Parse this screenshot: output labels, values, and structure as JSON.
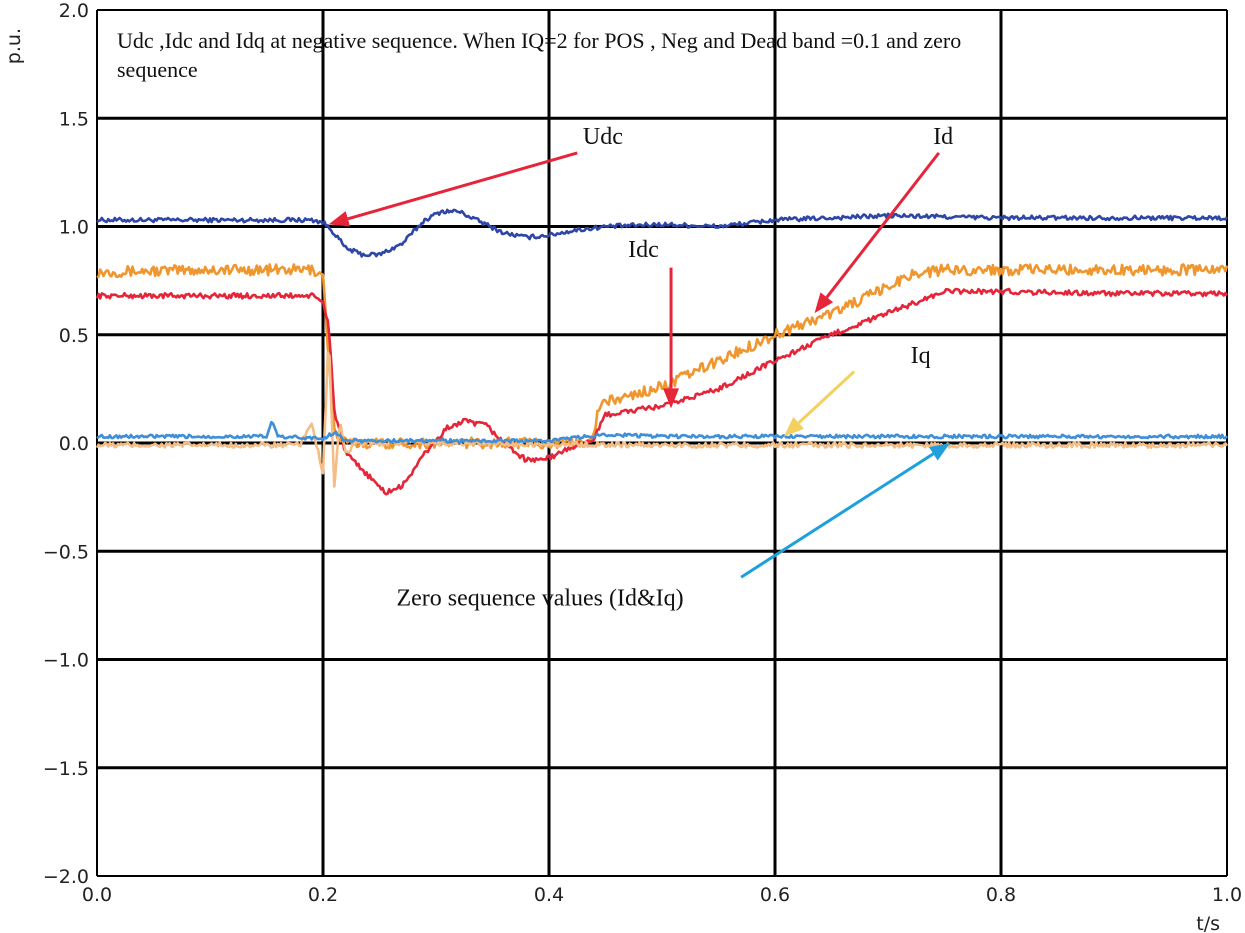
{
  "chart_data": {
    "type": "line",
    "title_lines": [
      "Udc ,Idc and Idq at negative sequence. When IQ=2 for  POS , Neg and Dead band =0.1 and zero",
      "sequence"
    ],
    "xlabel": "t/s",
    "ylabel": "p.u.",
    "xlim": [
      0,
      1
    ],
    "ylim": [
      -2,
      2
    ],
    "grid": true,
    "x_ticks": [
      0.0,
      0.2,
      0.4,
      0.6,
      0.8,
      1.0
    ],
    "x_tick_labels": [
      "0.0",
      "0.2",
      "0.4",
      "0.6",
      "0.8",
      "1.0"
    ],
    "y_ticks": [
      -2.0,
      -1.5,
      -1.0,
      -0.5,
      0.0,
      0.5,
      1.0,
      1.5,
      2.0
    ],
    "y_tick_labels": [
      "−2.0",
      "−1.5",
      "−1.0",
      "−0.5",
      "0.0",
      "0.5",
      "1.0",
      "1.5",
      "2.0"
    ],
    "series": [
      {
        "name": "Udc",
        "color": "#2e46a8",
        "x": [
          0.0,
          0.1,
          0.19,
          0.2,
          0.21,
          0.22,
          0.235,
          0.25,
          0.27,
          0.29,
          0.305,
          0.32,
          0.34,
          0.36,
          0.38,
          0.4,
          0.42,
          0.45,
          0.5,
          0.55,
          0.6,
          0.7,
          0.8,
          0.9,
          1.0
        ],
        "y": [
          1.03,
          1.03,
          1.03,
          1.02,
          0.97,
          0.9,
          0.87,
          0.87,
          0.92,
          1.03,
          1.07,
          1.07,
          1.02,
          0.97,
          0.95,
          0.96,
          0.98,
          1.0,
          1.01,
          1.0,
          1.03,
          1.05,
          1.04,
          1.04,
          1.04
        ],
        "noise": 0.01
      },
      {
        "name": "Idc",
        "color": "#f0962e",
        "x": [
          0.0,
          0.1,
          0.19,
          0.2,
          0.205,
          0.21,
          0.22,
          0.25,
          0.3,
          0.35,
          0.4,
          0.43,
          0.44,
          0.445,
          0.5,
          0.55,
          0.6,
          0.65,
          0.7,
          0.72,
          0.75,
          0.8,
          0.9,
          1.0
        ],
        "y": [
          0.79,
          0.8,
          0.8,
          0.78,
          0.4,
          0.05,
          0.0,
          0.0,
          0.0,
          0.0,
          0.0,
          0.0,
          0.05,
          0.18,
          0.26,
          0.38,
          0.5,
          0.6,
          0.72,
          0.78,
          0.8,
          0.8,
          0.8,
          0.8
        ],
        "noise": 0.025
      },
      {
        "name": "Id",
        "color": "#e5253a",
        "x": [
          0.0,
          0.19,
          0.2,
          0.205,
          0.21,
          0.22,
          0.24,
          0.255,
          0.27,
          0.29,
          0.31,
          0.325,
          0.345,
          0.36,
          0.38,
          0.4,
          0.42,
          0.44,
          0.45,
          0.5,
          0.55,
          0.6,
          0.65,
          0.7,
          0.75,
          0.8,
          0.9,
          1.0
        ],
        "y": [
          0.68,
          0.68,
          0.65,
          0.55,
          0.15,
          -0.05,
          -0.15,
          -0.23,
          -0.2,
          -0.05,
          0.07,
          0.1,
          0.08,
          0.0,
          -0.08,
          -0.07,
          -0.02,
          0.02,
          0.13,
          0.17,
          0.25,
          0.38,
          0.5,
          0.6,
          0.7,
          0.7,
          0.69,
          0.69
        ],
        "noise": 0.012
      },
      {
        "name": "Iq",
        "color": "#f4bd86",
        "x": [
          0.0,
          0.18,
          0.19,
          0.2,
          0.205,
          0.21,
          0.215,
          0.22,
          0.23,
          0.3,
          0.5,
          0.7,
          1.0
        ],
        "y": [
          -0.01,
          -0.01,
          0.1,
          -0.15,
          0.5,
          -0.2,
          0.1,
          -0.05,
          0.0,
          0.0,
          -0.01,
          -0.01,
          -0.01
        ],
        "noise": 0.012
      },
      {
        "name": "Zero sequence",
        "color": "#3f8ed8",
        "x": [
          0.0,
          0.14,
          0.15,
          0.155,
          0.16,
          0.2,
          0.21,
          0.22,
          0.3,
          0.4,
          0.45,
          0.5,
          0.6,
          0.7,
          0.8,
          0.9,
          1.0
        ],
        "y": [
          0.03,
          0.03,
          0.03,
          0.1,
          0.03,
          0.02,
          0.05,
          0.01,
          0.01,
          0.01,
          0.04,
          0.03,
          0.03,
          0.03,
          0.03,
          0.03,
          0.03
        ],
        "noise": 0.008
      }
    ],
    "annotations": [
      {
        "text": "Udc",
        "text_x": 0.43,
        "text_y": 1.38,
        "arrow_from": [
          0.425,
          1.34
        ],
        "arrow_to": [
          0.205,
          1.01
        ],
        "color": "#e5253a"
      },
      {
        "text": "Id",
        "text_x": 0.74,
        "text_y": 1.38,
        "arrow_from": [
          0.745,
          1.34
        ],
        "arrow_to": [
          0.635,
          0.6
        ],
        "color": "#e5253a"
      },
      {
        "text": "Idc",
        "text_x": 0.47,
        "text_y": 0.86,
        "arrow_from": [
          0.508,
          0.81
        ],
        "arrow_to": [
          0.508,
          0.16
        ],
        "color": "#e5253a"
      },
      {
        "text": "Iq",
        "text_x": 0.72,
        "text_y": 0.37,
        "arrow_from": [
          0.67,
          0.33
        ],
        "arrow_to": [
          0.608,
          0.03
        ],
        "color": "#f5d05e"
      },
      {
        "text": "Zero sequence values (Id&Iq)",
        "text_x": 0.265,
        "text_y": -0.75,
        "arrow_from": [
          0.57,
          -0.62
        ],
        "arrow_to": [
          0.755,
          -0.0
        ],
        "color": "#1fa0dd"
      }
    ]
  }
}
